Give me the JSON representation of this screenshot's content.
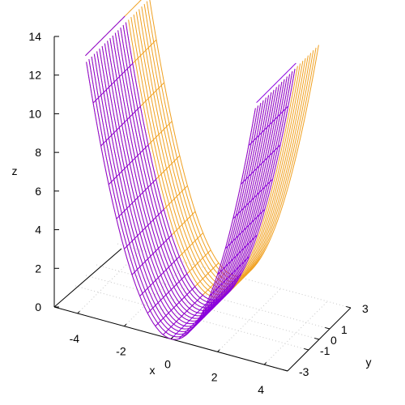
{
  "chart_data": {
    "type": "surface",
    "function": "z = x^2",
    "xlabel": "x",
    "ylabel": "y",
    "zlabel": "z",
    "xlim": [
      -5,
      5
    ],
    "ylim": [
      -3,
      3
    ],
    "zlim": [
      0,
      14
    ],
    "x_ticks": [
      "-4",
      "-2",
      "0",
      "2",
      "4"
    ],
    "y_ticks": [
      "-3",
      "-1",
      "0",
      "1",
      "3"
    ],
    "z_ticks": [
      "0",
      "2",
      "4",
      "6",
      "8",
      "10",
      "12",
      "14"
    ],
    "grid": true,
    "legend": "none",
    "colors": {
      "top_surface": "#8a00e0",
      "underside": "#f0a020",
      "axis": "#000000",
      "grid": "#c8c8c8"
    },
    "mesh": {
      "x_lines": 30,
      "y_lines": 24
    }
  }
}
